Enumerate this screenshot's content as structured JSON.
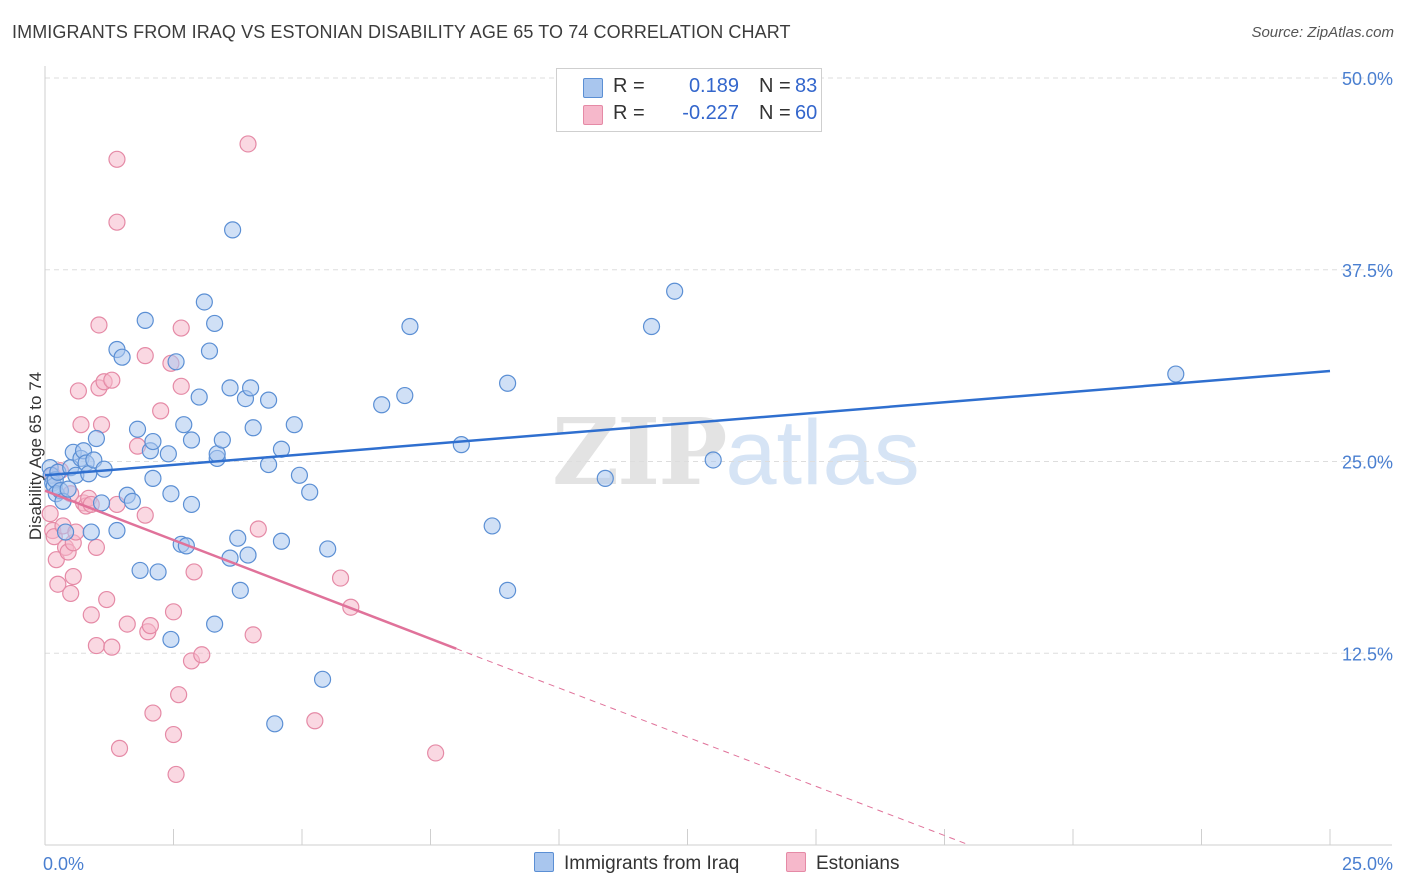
{
  "title": "IMMIGRANTS FROM IRAQ VS ESTONIAN DISABILITY AGE 65 TO 74 CORRELATION CHART",
  "source": "Source: ZipAtlas.com",
  "watermark": {
    "zip": "ZIP",
    "atlas": "atlas"
  },
  "legend": {
    "series1": {
      "r_label": "R =",
      "r_value": "0.189",
      "n_label": "N =",
      "n_value": "83"
    },
    "series2": {
      "r_label": "R =",
      "r_value": "-0.227",
      "n_label": "N =",
      "n_value": "60"
    }
  },
  "bottom_legend": {
    "series1": "Immigrants from Iraq",
    "series2": "Estonians"
  },
  "colors": {
    "series1_fill": "#a9c6ee",
    "series1_stroke": "#5b8fd4",
    "series1_line": "#2f6fcf",
    "series2_fill": "#f6b8cb",
    "series2_stroke": "#e58aa6",
    "series2_line": "#e0729a",
    "axis_text": "#4a7fd0",
    "grid": "#dddddd"
  },
  "chart_data": {
    "type": "scatter",
    "title": "IMMIGRANTS FROM IRAQ VS ESTONIAN DISABILITY AGE 65 TO 74 CORRELATION CHART",
    "xlabel": "",
    "ylabel": "Disability Age 65 to 74",
    "xlim": [
      0,
      25
    ],
    "ylim": [
      0,
      50
    ],
    "x_tick_labels": [
      "0.0%",
      "25.0%"
    ],
    "y_ticks": [
      12.5,
      25.0,
      37.5,
      50.0
    ],
    "y_tick_labels": [
      "12.5%",
      "25.0%",
      "37.5%",
      "50.0%"
    ],
    "series": [
      {
        "name": "Immigrants from Iraq",
        "r": 0.189,
        "n": 83,
        "trend": {
          "x0": 0.0,
          "y0": 24.1,
          "x1": 25.0,
          "y1": 30.9,
          "dashed_to": null
        },
        "points": [
          [
            0.1,
            24.6
          ],
          [
            0.12,
            24.1
          ],
          [
            0.15,
            23.6
          ],
          [
            0.18,
            23.4
          ],
          [
            0.2,
            23.8
          ],
          [
            0.22,
            22.9
          ],
          [
            0.25,
            24.3
          ],
          [
            0.3,
            23.1
          ],
          [
            0.35,
            22.4
          ],
          [
            0.4,
            20.4
          ],
          [
            0.45,
            23.2
          ],
          [
            0.5,
            24.6
          ],
          [
            0.55,
            25.6
          ],
          [
            0.6,
            24.1
          ],
          [
            0.7,
            25.2
          ],
          [
            0.75,
            25.7
          ],
          [
            0.8,
            24.9
          ],
          [
            0.85,
            24.2
          ],
          [
            0.9,
            20.4
          ],
          [
            0.95,
            25.1
          ],
          [
            1.0,
            26.5
          ],
          [
            1.1,
            22.3
          ],
          [
            1.15,
            24.5
          ],
          [
            1.4,
            20.5
          ],
          [
            1.4,
            32.3
          ],
          [
            1.5,
            31.8
          ],
          [
            1.6,
            22.8
          ],
          [
            1.7,
            22.4
          ],
          [
            1.8,
            27.1
          ],
          [
            1.85,
            17.9
          ],
          [
            1.95,
            34.2
          ],
          [
            2.05,
            25.7
          ],
          [
            2.1,
            26.3
          ],
          [
            2.1,
            23.9
          ],
          [
            2.2,
            17.8
          ],
          [
            2.4,
            25.5
          ],
          [
            2.45,
            22.9
          ],
          [
            2.45,
            13.4
          ],
          [
            2.55,
            31.5
          ],
          [
            2.65,
            19.6
          ],
          [
            2.7,
            27.4
          ],
          [
            2.75,
            19.5
          ],
          [
            2.85,
            22.2
          ],
          [
            2.85,
            26.4
          ],
          [
            3.0,
            29.2
          ],
          [
            3.1,
            35.4
          ],
          [
            3.2,
            32.2
          ],
          [
            3.3,
            34.0
          ],
          [
            3.3,
            14.4
          ],
          [
            3.35,
            25.2
          ],
          [
            3.35,
            25.5
          ],
          [
            3.45,
            26.4
          ],
          [
            3.6,
            29.8
          ],
          [
            3.6,
            18.7
          ],
          [
            3.65,
            40.1
          ],
          [
            3.75,
            20.0
          ],
          [
            3.8,
            16.6
          ],
          [
            3.9,
            29.1
          ],
          [
            3.95,
            18.9
          ],
          [
            4.0,
            29.8
          ],
          [
            4.05,
            27.2
          ],
          [
            4.35,
            24.8
          ],
          [
            4.35,
            29.0
          ],
          [
            4.47,
            7.9
          ],
          [
            4.6,
            19.8
          ],
          [
            4.6,
            25.8
          ],
          [
            4.85,
            27.4
          ],
          [
            4.95,
            24.1
          ],
          [
            5.15,
            23.0
          ],
          [
            5.5,
            19.3
          ],
          [
            5.4,
            10.8
          ],
          [
            6.55,
            28.7
          ],
          [
            7.0,
            29.3
          ],
          [
            7.1,
            33.8
          ],
          [
            8.1,
            26.1
          ],
          [
            8.7,
            20.8
          ],
          [
            9.0,
            30.1
          ],
          [
            9.0,
            16.6
          ],
          [
            10.9,
            23.9
          ],
          [
            11.8,
            33.8
          ],
          [
            12.25,
            36.1
          ],
          [
            13.0,
            25.1
          ],
          [
            22.0,
            30.7
          ]
        ]
      },
      {
        "name": "Estonians",
        "r": -0.227,
        "n": 60,
        "trend": {
          "x0": 0.0,
          "y0": 23.1,
          "x1": 8.0,
          "y1": 12.8,
          "dashed_to": {
            "x": 25.0,
            "y": -9.0
          }
        },
        "points": [
          [
            0.1,
            21.6
          ],
          [
            0.15,
            24.1
          ],
          [
            0.15,
            20.5
          ],
          [
            0.18,
            20.1
          ],
          [
            0.22,
            18.6
          ],
          [
            0.25,
            17.0
          ],
          [
            0.3,
            24.4
          ],
          [
            0.35,
            20.8
          ],
          [
            0.4,
            19.4
          ],
          [
            0.45,
            19.1
          ],
          [
            0.5,
            16.4
          ],
          [
            0.5,
            22.9
          ],
          [
            0.55,
            19.7
          ],
          [
            0.55,
            17.5
          ],
          [
            0.6,
            20.4
          ],
          [
            0.65,
            29.6
          ],
          [
            0.7,
            27.4
          ],
          [
            0.75,
            22.3
          ],
          [
            0.8,
            22.1
          ],
          [
            0.85,
            22.6
          ],
          [
            0.9,
            22.2
          ],
          [
            0.9,
            15.0
          ],
          [
            1.0,
            19.4
          ],
          [
            1.0,
            13.0
          ],
          [
            1.05,
            29.8
          ],
          [
            1.05,
            33.9
          ],
          [
            1.1,
            27.4
          ],
          [
            1.15,
            30.2
          ],
          [
            1.2,
            16.0
          ],
          [
            1.3,
            30.3
          ],
          [
            1.3,
            12.9
          ],
          [
            1.4,
            22.2
          ],
          [
            1.4,
            40.6
          ],
          [
            1.4,
            44.7
          ],
          [
            1.45,
            6.3
          ],
          [
            1.6,
            14.4
          ],
          [
            1.8,
            26.0
          ],
          [
            1.95,
            21.5
          ],
          [
            1.95,
            31.9
          ],
          [
            2.0,
            13.9
          ],
          [
            2.05,
            14.3
          ],
          [
            2.1,
            8.6
          ],
          [
            2.25,
            28.3
          ],
          [
            2.45,
            31.4
          ],
          [
            2.5,
            7.2
          ],
          [
            2.55,
            4.6
          ],
          [
            2.6,
            9.8
          ],
          [
            2.65,
            33.7
          ],
          [
            2.65,
            29.9
          ],
          [
            2.85,
            12.0
          ],
          [
            2.9,
            17.8
          ],
          [
            3.05,
            12.4
          ],
          [
            3.95,
            45.7
          ],
          [
            4.05,
            13.7
          ],
          [
            4.15,
            20.6
          ],
          [
            5.25,
            8.1
          ],
          [
            5.75,
            17.4
          ],
          [
            5.95,
            15.5
          ],
          [
            7.6,
            6.0
          ],
          [
            2.5,
            15.2
          ]
        ]
      }
    ]
  }
}
